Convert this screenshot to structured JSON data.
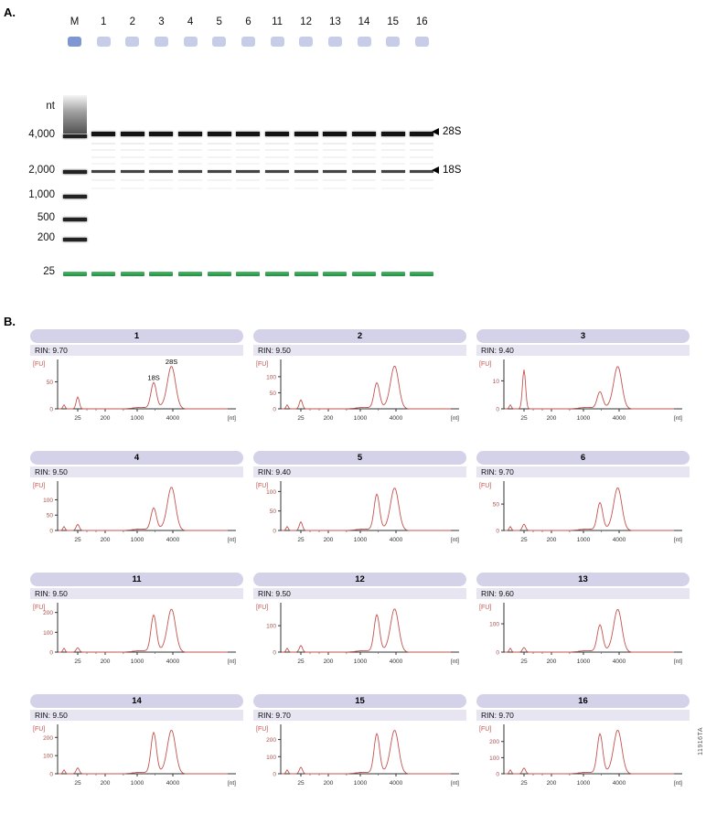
{
  "side_label": "11916TA",
  "colors": {
    "trace_red": "#c4534f",
    "y_label_red": "#a8514d",
    "header_lavender": "#d4d2e9",
    "rin_strip_lavender": "#e7e5f2",
    "gel_green": "#1d8f41",
    "well_marker_blue": "#7e96d2",
    "well_sample_blue": "#c7cde9"
  },
  "panel_a": {
    "label": "A.",
    "axis_unit": "nt",
    "lanes": [
      "M",
      "1",
      "2",
      "3",
      "4",
      "5",
      "6",
      "11",
      "12",
      "13",
      "14",
      "15",
      "16"
    ],
    "size_markers": [
      "4,000",
      "2,000",
      "1,000",
      "500",
      "200",
      "25"
    ],
    "band_arrows": [
      "28S",
      "18S"
    ]
  },
  "panel_b": {
    "label": "B.",
    "fu_label": "[FU]",
    "nt_label": "[nt]",
    "rin_prefix": "RIN:"
  },
  "chart_data": [
    {
      "type": "line",
      "title": "1",
      "rin": "9.70",
      "x_unit": "nt",
      "y_unit": "FU",
      "x_ticks": [
        25,
        200,
        1000,
        4000
      ],
      "y_ticks": [
        0,
        50
      ],
      "ylim": [
        0,
        88
      ],
      "peaks": [
        {
          "name": "marker",
          "nt": 25,
          "fu": 22
        },
        {
          "name": "18S",
          "nt": 1900,
          "fu": 48
        },
        {
          "name": "28S",
          "nt": 3800,
          "fu": 78
        }
      ],
      "annotations": [
        "18S",
        "28S"
      ]
    },
    {
      "type": "line",
      "title": "2",
      "rin": "9.50",
      "x_unit": "nt",
      "y_unit": "FU",
      "x_ticks": [
        25,
        200,
        1000,
        4000
      ],
      "y_ticks": [
        0,
        50,
        100
      ],
      "ylim": [
        0,
        148
      ],
      "peaks": [
        {
          "name": "marker",
          "nt": 25,
          "fu": 28
        },
        {
          "name": "18S",
          "nt": 1900,
          "fu": 80
        },
        {
          "name": "28S",
          "nt": 3800,
          "fu": 132
        }
      ]
    },
    {
      "type": "line",
      "title": "3",
      "rin": "9.40",
      "x_unit": "nt",
      "y_unit": "FU",
      "x_ticks": [
        25,
        200,
        1000,
        4000
      ],
      "y_ticks": [
        0,
        10
      ],
      "ylim": [
        0,
        17
      ],
      "peaks": [
        {
          "name": "marker",
          "nt": 25,
          "fu": 14
        },
        {
          "name": "18S",
          "nt": 1900,
          "fu": 6
        },
        {
          "name": "28S",
          "nt": 3800,
          "fu": 15
        }
      ]
    },
    {
      "type": "line",
      "title": "4",
      "rin": "9.50",
      "x_unit": "nt",
      "y_unit": "FU",
      "x_ticks": [
        25,
        200,
        1000,
        4000
      ],
      "y_ticks": [
        0,
        50,
        100
      ],
      "ylim": [
        0,
        155
      ],
      "peaks": [
        {
          "name": "marker",
          "nt": 25,
          "fu": 20
        },
        {
          "name": "18S",
          "nt": 1900,
          "fu": 72
        },
        {
          "name": "28S",
          "nt": 3800,
          "fu": 140
        }
      ]
    },
    {
      "type": "line",
      "title": "5",
      "rin": "9.40",
      "x_unit": "nt",
      "y_unit": "FU",
      "x_ticks": [
        25,
        200,
        1000,
        4000
      ],
      "y_ticks": [
        0,
        50,
        100
      ],
      "ylim": [
        0,
        122
      ],
      "peaks": [
        {
          "name": "marker",
          "nt": 25,
          "fu": 22
        },
        {
          "name": "18S",
          "nt": 1900,
          "fu": 92
        },
        {
          "name": "28S",
          "nt": 3800,
          "fu": 108
        }
      ]
    },
    {
      "type": "line",
      "title": "6",
      "rin": "9.70",
      "x_unit": "nt",
      "y_unit": "FU",
      "x_ticks": [
        25,
        200,
        1000,
        4000
      ],
      "y_ticks": [
        0,
        50
      ],
      "ylim": [
        0,
        90
      ],
      "peaks": [
        {
          "name": "marker",
          "nt": 25,
          "fu": 12
        },
        {
          "name": "18S",
          "nt": 1900,
          "fu": 52
        },
        {
          "name": "28S",
          "nt": 3800,
          "fu": 80
        }
      ]
    },
    {
      "type": "line",
      "title": "11",
      "rin": "9.50",
      "x_unit": "nt",
      "y_unit": "FU",
      "x_ticks": [
        25,
        200,
        1000,
        4000
      ],
      "y_ticks": [
        0,
        100,
        200
      ],
      "ylim": [
        0,
        240
      ],
      "peaks": [
        {
          "name": "marker",
          "nt": 25,
          "fu": 22
        },
        {
          "name": "18S",
          "nt": 1900,
          "fu": 185
        },
        {
          "name": "28S",
          "nt": 3800,
          "fu": 215
        }
      ]
    },
    {
      "type": "line",
      "title": "12",
      "rin": "9.50",
      "x_unit": "nt",
      "y_unit": "FU",
      "x_ticks": [
        25,
        200,
        1000,
        4000
      ],
      "y_ticks": [
        0,
        100
      ],
      "ylim": [
        0,
        180
      ],
      "peaks": [
        {
          "name": "marker",
          "nt": 25,
          "fu": 25
        },
        {
          "name": "18S",
          "nt": 1900,
          "fu": 140
        },
        {
          "name": "28S",
          "nt": 3800,
          "fu": 162
        }
      ]
    },
    {
      "type": "line",
      "title": "13",
      "rin": "9.60",
      "x_unit": "nt",
      "y_unit": "FU",
      "x_ticks": [
        25,
        200,
        1000,
        4000
      ],
      "y_ticks": [
        0,
        100
      ],
      "ylim": [
        0,
        168
      ],
      "peaks": [
        {
          "name": "marker",
          "nt": 25,
          "fu": 16
        },
        {
          "name": "18S",
          "nt": 1900,
          "fu": 95
        },
        {
          "name": "28S",
          "nt": 3800,
          "fu": 150
        }
      ]
    },
    {
      "type": "line",
      "title": "14",
      "rin": "9.50",
      "x_unit": "nt",
      "y_unit": "FU",
      "x_ticks": [
        25,
        200,
        1000,
        4000
      ],
      "y_ticks": [
        0,
        100,
        200
      ],
      "ylim": [
        0,
        262
      ],
      "peaks": [
        {
          "name": "marker",
          "nt": 25,
          "fu": 32
        },
        {
          "name": "18S",
          "nt": 1900,
          "fu": 225
        },
        {
          "name": "28S",
          "nt": 3800,
          "fu": 238
        }
      ]
    },
    {
      "type": "line",
      "title": "15",
      "rin": "9.70",
      "x_unit": "nt",
      "y_unit": "FU",
      "x_ticks": [
        25,
        200,
        1000,
        4000
      ],
      "y_ticks": [
        0,
        100,
        200
      ],
      "ylim": [
        0,
        278
      ],
      "peaks": [
        {
          "name": "marker",
          "nt": 25,
          "fu": 38
        },
        {
          "name": "18S",
          "nt": 1900,
          "fu": 232
        },
        {
          "name": "28S",
          "nt": 3800,
          "fu": 252
        }
      ]
    },
    {
      "type": "line",
      "title": "16",
      "rin": "9.70",
      "x_unit": "nt",
      "y_unit": "FU",
      "x_ticks": [
        25,
        200,
        1000,
        4000
      ],
      "y_ticks": [
        0,
        100,
        200
      ],
      "ylim": [
        0,
        295
      ],
      "peaks": [
        {
          "name": "marker",
          "nt": 25,
          "fu": 35
        },
        {
          "name": "18S",
          "nt": 1900,
          "fu": 245
        },
        {
          "name": "28S",
          "nt": 3800,
          "fu": 268
        }
      ]
    }
  ]
}
